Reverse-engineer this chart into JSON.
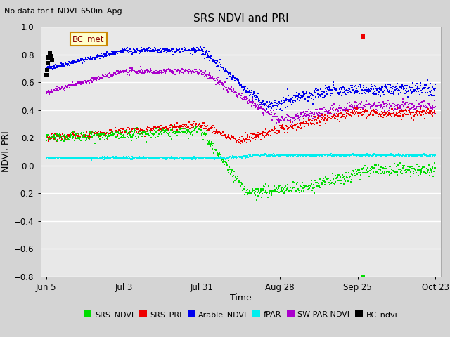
{
  "title": "SRS NDVI and PRI",
  "subtitle": "No data for f_NDVI_650in_Apg",
  "ylabel": "NDVI, PRI",
  "xlabel": "Time",
  "ylim": [
    -0.8,
    1.0
  ],
  "yticks": [
    -0.8,
    -0.6,
    -0.4,
    -0.2,
    0.0,
    0.2,
    0.4,
    0.6,
    0.8,
    1.0
  ],
  "xtick_labels": [
    "Jun 5",
    "Jul 3",
    "Jul 31",
    "Aug 28",
    "Sep 25",
    "Oct 23"
  ],
  "xtick_days": [
    156,
    184,
    212,
    240,
    268,
    296
  ],
  "start_day": 154,
  "end_day": 298,
  "colors": {
    "SRS_NDVI": "#00dd00",
    "SRS_PRI": "#ee0000",
    "Arable_NDVI": "#0000ee",
    "fPAR": "#00eeee",
    "SW_PAR_NDVI": "#aa00cc",
    "BC_ndvi": "#000000"
  },
  "fig_bg": "#d4d4d4",
  "plot_bg": "#e8e8e8",
  "grid_color": "#ffffff",
  "grid_lw": 1.0
}
